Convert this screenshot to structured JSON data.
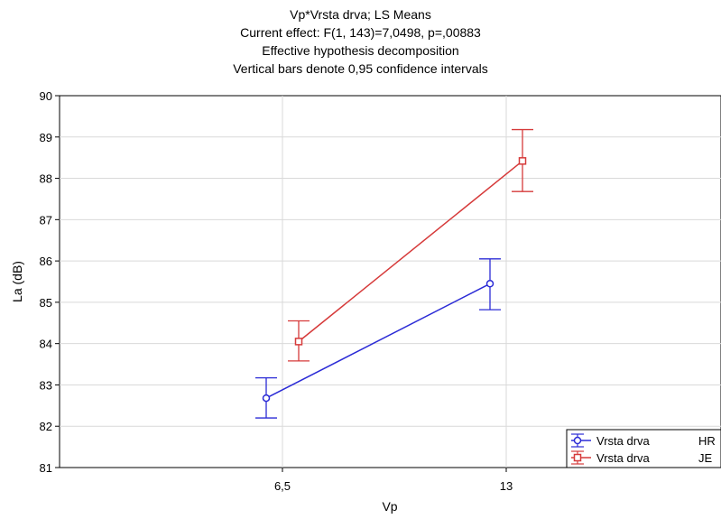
{
  "chart_data": {
    "type": "line",
    "title_lines": [
      "Vp*Vrsta drva; LS Means",
      "Current effect: F(1, 143)=7,0498, p=,00883",
      "Effective hypothesis decomposition",
      "Vertical bars denote 0,95 confidence intervals"
    ],
    "xlabel": "Vp",
    "ylabel": "La (dB)",
    "categories": [
      "6,5",
      "13"
    ],
    "ylim": [
      81,
      90
    ],
    "yticks": [
      81,
      82,
      83,
      84,
      85,
      86,
      87,
      88,
      89,
      90
    ],
    "grid": true,
    "legend_position": "bottom-right",
    "series": [
      {
        "legend_label": "Vrsta drva",
        "legend_value": "HR",
        "color": "#2b2bd6",
        "marker": "circle",
        "values": [
          82.68,
          85.45
        ],
        "ci_lower": [
          82.2,
          84.82
        ],
        "ci_upper": [
          83.17,
          86.05
        ]
      },
      {
        "legend_label": "Vrsta drva",
        "legend_value": "JE",
        "color": "#d63a3a",
        "marker": "square",
        "values": [
          84.05,
          88.42
        ],
        "ci_lower": [
          83.58,
          87.68
        ],
        "ci_upper": [
          84.55,
          89.18
        ]
      }
    ]
  }
}
